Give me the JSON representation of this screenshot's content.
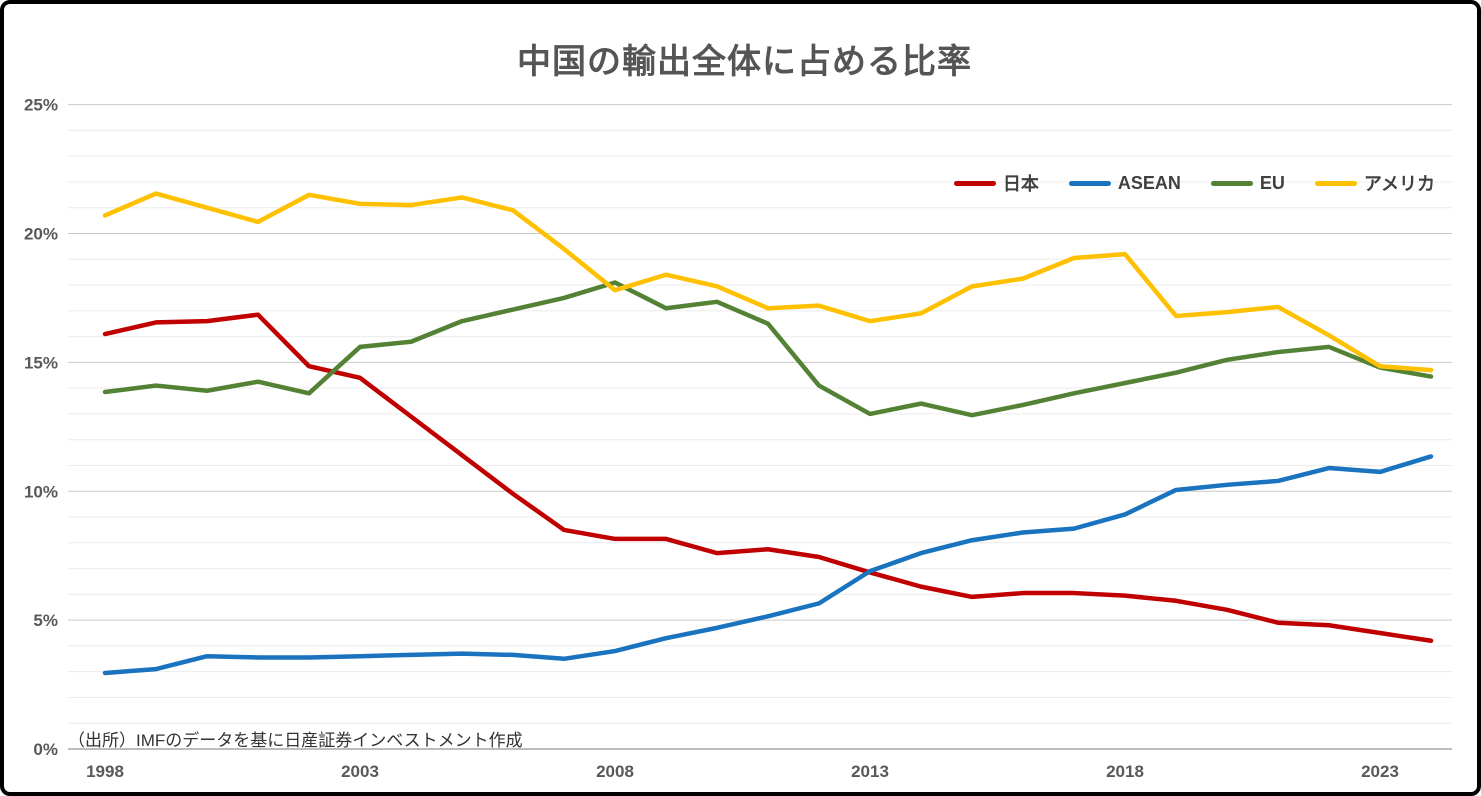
{
  "title": "中国の輸出全体に占める比率",
  "source_note": "（出所）IMFのデータを基に日産証券インベストメント作成",
  "colors": {
    "japan_red": "#C00000",
    "asean_blue": "#1973BE",
    "eu_green": "#548235",
    "usa_yellow": "#FFC000",
    "title_text": "#555555",
    "axis_text": "#595959",
    "minor_gridline": "#ECECEC",
    "major_gridline": "#C9C9C9",
    "zero_axis_line": "#A6A6A6",
    "frame_border": "#000000"
  },
  "chart_data": {
    "type": "line",
    "title": "中国の輸出全体に占める比率",
    "xlabel": "",
    "ylabel": "",
    "grid": true,
    "legend_position": "top-right",
    "x": [
      1998,
      1999,
      2000,
      2001,
      2002,
      2003,
      2004,
      2005,
      2006,
      2007,
      2008,
      2009,
      2010,
      2011,
      2012,
      2013,
      2014,
      2015,
      2016,
      2017,
      2018,
      2019,
      2020,
      2021,
      2022,
      2023,
      2024
    ],
    "x_tick_years": [
      1998,
      2003,
      2008,
      2013,
      2018,
      2023
    ],
    "x_tick_labels": [
      "1998",
      "2003",
      "2008",
      "2013",
      "2018",
      "2023"
    ],
    "y_axis": {
      "min": 0,
      "max": 25,
      "minor_step": 1,
      "major_step": 5,
      "tick_labels": [
        "0%",
        "5%",
        "10%",
        "15%",
        "20%",
        "25%"
      ]
    },
    "series": [
      {
        "name": "日本",
        "color": "#C00000",
        "values": [
          16.1,
          16.55,
          16.6,
          16.85,
          14.85,
          14.4,
          12.9,
          11.4,
          9.9,
          8.5,
          8.15,
          8.15,
          7.6,
          7.75,
          7.45,
          6.85,
          6.3,
          5.9,
          6.05,
          6.05,
          5.95,
          5.75,
          5.4,
          4.9,
          4.8,
          4.5,
          4.2
        ]
      },
      {
        "name": "ASEAN",
        "color": "#1973BE",
        "values": [
          2.95,
          3.1,
          3.6,
          3.55,
          3.55,
          3.6,
          3.65,
          3.7,
          3.65,
          3.5,
          3.8,
          4.3,
          4.7,
          5.15,
          5.65,
          6.9,
          7.6,
          8.1,
          8.4,
          8.55,
          9.1,
          10.05,
          10.25,
          10.4,
          10.9,
          10.75,
          11.35
        ]
      },
      {
        "name": "EU",
        "color": "#548235",
        "values": [
          13.85,
          14.1,
          13.9,
          14.25,
          13.8,
          15.6,
          15.8,
          16.6,
          17.05,
          17.5,
          18.1,
          17.1,
          17.35,
          16.5,
          14.1,
          13.0,
          13.4,
          12.95,
          13.35,
          13.8,
          14.2,
          14.6,
          15.1,
          15.4,
          15.6,
          14.8,
          14.45
        ]
      },
      {
        "name": "アメリカ",
        "color": "#FFC000",
        "values": [
          20.7,
          21.55,
          21.0,
          20.45,
          21.5,
          21.15,
          21.1,
          21.4,
          20.9,
          19.4,
          17.8,
          18.4,
          17.95,
          17.1,
          17.2,
          16.6,
          16.9,
          17.95,
          18.25,
          19.05,
          19.2,
          16.8,
          16.95,
          17.15,
          16.05,
          14.85,
          14.7
        ]
      }
    ]
  }
}
